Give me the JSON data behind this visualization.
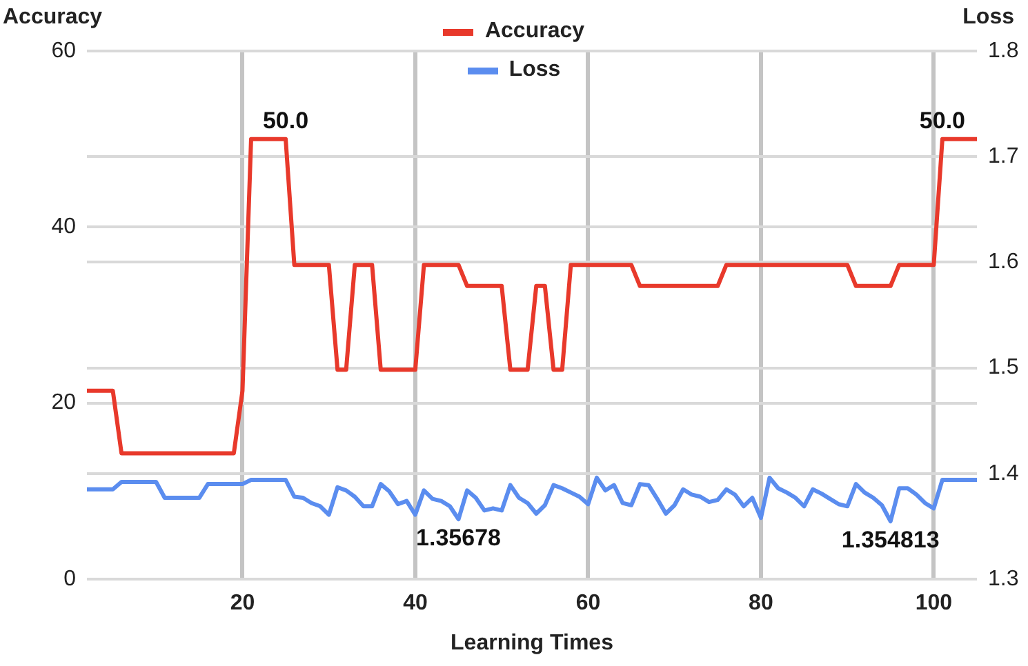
{
  "chart_data": {
    "type": "line",
    "xlabel": "Learning Times",
    "ylabel": "Accuracy",
    "y2label": "Loss",
    "x": [
      2,
      3,
      4,
      5,
      6,
      7,
      8,
      9,
      10,
      11,
      12,
      13,
      14,
      15,
      16,
      17,
      18,
      19,
      20,
      21,
      22,
      23,
      24,
      25,
      26,
      27,
      28,
      29,
      30,
      31,
      32,
      33,
      34,
      35,
      36,
      37,
      38,
      39,
      40,
      41,
      42,
      43,
      44,
      45,
      46,
      47,
      48,
      49,
      50,
      51,
      52,
      53,
      54,
      55,
      56,
      57,
      58,
      59,
      60,
      61,
      62,
      63,
      64,
      65,
      66,
      67,
      68,
      69,
      70,
      71,
      72,
      73,
      74,
      75,
      76,
      77,
      78,
      79,
      80,
      81,
      82,
      83,
      84,
      85,
      86,
      87,
      88,
      89,
      90,
      91,
      92,
      93,
      94,
      95,
      96,
      97,
      98,
      99,
      100,
      101,
      102,
      103,
      104,
      105
    ],
    "series": [
      {
        "name": "Accuracy",
        "color": "#e8392b",
        "values": [
          21.4,
          21.4,
          21.4,
          21.4,
          14.3,
          14.3,
          14.3,
          14.3,
          14.3,
          14.3,
          14.3,
          14.3,
          14.3,
          14.3,
          14.3,
          14.3,
          14.3,
          14.3,
          21.4,
          50,
          50,
          50,
          50,
          50,
          35.7,
          35.7,
          35.7,
          35.7,
          35.7,
          23.8,
          23.8,
          35.7,
          35.7,
          35.7,
          23.8,
          23.8,
          23.8,
          23.8,
          23.8,
          35.7,
          35.7,
          35.7,
          35.7,
          35.7,
          33.3,
          33.3,
          33.3,
          33.3,
          33.3,
          23.8,
          23.8,
          23.8,
          33.3,
          33.3,
          23.8,
          23.8,
          35.7,
          35.7,
          35.7,
          35.7,
          35.7,
          35.7,
          35.7,
          35.7,
          33.3,
          33.3,
          33.3,
          33.3,
          33.3,
          33.3,
          33.3,
          33.3,
          33.3,
          33.3,
          35.7,
          35.7,
          35.7,
          35.7,
          35.7,
          35.7,
          35.7,
          35.7,
          35.7,
          35.7,
          35.7,
          35.7,
          35.7,
          35.7,
          35.7,
          33.3,
          33.3,
          33.3,
          33.3,
          33.3,
          35.7,
          35.7,
          35.7,
          35.7,
          35.7,
          50,
          50,
          50,
          50,
          50
        ],
        "value_labels": [
          null,
          null,
          null,
          null,
          null,
          null,
          null,
          null,
          null,
          null,
          null,
          null,
          null,
          null,
          null,
          null,
          null,
          null,
          null,
          null,
          null,
          null,
          null,
          "50.0",
          null,
          null,
          null,
          null,
          null,
          null,
          null,
          null,
          null,
          null,
          null,
          null,
          null,
          null,
          null,
          null,
          null,
          null,
          null,
          null,
          null,
          null,
          null,
          null,
          null,
          null,
          null,
          null,
          null,
          null,
          null,
          null,
          null,
          null,
          null,
          null,
          null,
          null,
          null,
          null,
          null,
          null,
          null,
          null,
          null,
          null,
          null,
          null,
          null,
          null,
          null,
          null,
          null,
          null,
          null,
          null,
          null,
          null,
          null,
          null,
          null,
          null,
          null,
          null,
          null,
          null,
          null,
          null,
          null,
          null,
          null,
          null,
          null,
          null,
          null,
          "50.0",
          null,
          null,
          null,
          null
        ]
      },
      {
        "name": "Loss",
        "color": "#5b8def",
        "axis": "y2",
        "values": [
          1.385,
          1.385,
          1.385,
          1.385,
          1.392,
          1.392,
          1.392,
          1.392,
          1.392,
          1.377,
          1.377,
          1.377,
          1.377,
          1.377,
          1.39,
          1.39,
          1.39,
          1.39,
          1.39,
          1.394,
          1.394,
          1.394,
          1.394,
          1.394,
          1.378,
          1.377,
          1.372,
          1.369,
          1.361,
          1.387,
          1.384,
          1.378,
          1.369,
          1.369,
          1.39,
          1.383,
          1.371,
          1.374,
          1.361,
          1.384,
          1.376,
          1.374,
          1.369,
          1.35678,
          1.384,
          1.377,
          1.365,
          1.367,
          1.365,
          1.389,
          1.377,
          1.372,
          1.362,
          1.37,
          1.389,
          1.386,
          1.382,
          1.378,
          1.371,
          1.396,
          1.384,
          1.389,
          1.372,
          1.37,
          1.39,
          1.389,
          1.376,
          1.362,
          1.37,
          1.385,
          1.38,
          1.378,
          1.373,
          1.375,
          1.385,
          1.38,
          1.369,
          1.377,
          1.358,
          1.396,
          1.386,
          1.382,
          1.377,
          1.369,
          1.385,
          1.381,
          1.376,
          1.371,
          1.369,
          1.39,
          1.382,
          1.377,
          1.37,
          1.354813,
          1.386,
          1.386,
          1.38,
          1.372,
          1.367,
          1.394,
          1.394,
          1.394,
          1.394,
          1.394
        ],
        "value_labels": [
          null,
          null,
          null,
          null,
          null,
          null,
          null,
          null,
          null,
          null,
          null,
          null,
          null,
          null,
          null,
          null,
          null,
          null,
          null,
          null,
          null,
          null,
          null,
          null,
          null,
          null,
          null,
          null,
          null,
          null,
          null,
          null,
          null,
          null,
          null,
          null,
          null,
          null,
          null,
          null,
          null,
          null,
          null,
          "1.35678",
          null,
          null,
          null,
          null,
          null,
          null,
          null,
          null,
          null,
          null,
          null,
          null,
          null,
          null,
          null,
          null,
          null,
          null,
          null,
          null,
          null,
          null,
          null,
          null,
          null,
          null,
          null,
          null,
          null,
          null,
          null,
          null,
          null,
          null,
          null,
          null,
          null,
          null,
          null,
          null,
          null,
          null,
          null,
          null,
          null,
          null,
          null,
          null,
          null,
          "1.354813",
          null,
          null,
          null,
          null,
          null,
          null,
          null,
          null,
          null,
          null
        ]
      }
    ],
    "xlim": [
      2,
      105
    ],
    "xticks": [
      20,
      40,
      60,
      80,
      100
    ],
    "ylim": [
      0,
      60
    ],
    "yticks": [
      0,
      20,
      40,
      60
    ],
    "y2lim": [
      1.3,
      1.8
    ],
    "y2ticks": [
      1.3,
      1.4,
      1.5,
      1.6,
      1.7,
      1.8
    ],
    "grid": true,
    "legend": "top",
    "marker": "none",
    "line_style": "solid"
  }
}
